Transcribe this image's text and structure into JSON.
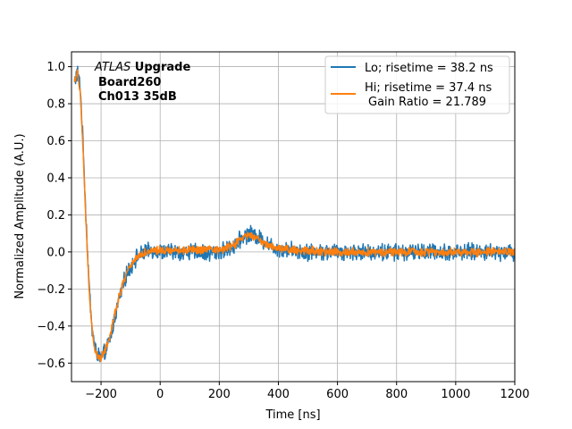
{
  "chart_data": {
    "type": "line",
    "xlabel": "Time [ns]",
    "ylabel": "Normalized Amplitude (A.U.)",
    "xlim": [
      -300,
      1200
    ],
    "ylim": [
      -0.7,
      1.08
    ],
    "xticks": [
      -200,
      0,
      200,
      400,
      600,
      800,
      1000,
      1200
    ],
    "yticks": [
      -0.6,
      -0.4,
      -0.2,
      0.0,
      0.2,
      0.4,
      0.6,
      0.8,
      1.0
    ],
    "xtick_labels": [
      "−200",
      "0",
      "200",
      "400",
      "600",
      "800",
      "1000",
      "1200"
    ],
    "ytick_labels": [
      "−0.6",
      "−0.4",
      "−0.2",
      "0.0",
      "0.2",
      "0.4",
      "0.6",
      "0.8",
      "1.0"
    ],
    "grid": true,
    "legend_position": "top-right",
    "annotation": {
      "line1_italic": "ATLAS",
      "line1_bold": " Upgrade",
      "line2": "Board260",
      "line3": "Ch013 35dB"
    },
    "legend_extra": "Gain Ratio = 21.789",
    "series": [
      {
        "name": "Lo; risetime = 38.2 ns",
        "color": "#1f77b4",
        "noise": 0.035,
        "x": [
          -290,
          -280,
          -270,
          -260,
          -250,
          -240,
          -230,
          -220,
          -210,
          -200,
          -190,
          -180,
          -170,
          -160,
          -150,
          -140,
          -130,
          -120,
          -110,
          -100,
          -90,
          -80,
          -70,
          -60,
          -50,
          -40,
          -30,
          -20,
          -10,
          0,
          20,
          40,
          60,
          80,
          100,
          120,
          140,
          160,
          180,
          200,
          220,
          240,
          260,
          280,
          300,
          320,
          340,
          360,
          380,
          400,
          450,
          500,
          550,
          600,
          650,
          700,
          750,
          800,
          850,
          900,
          950,
          1000,
          1050,
          1100,
          1150,
          1200
        ],
        "y": [
          0.92,
          0.97,
          0.88,
          0.55,
          0.15,
          -0.2,
          -0.42,
          -0.52,
          -0.56,
          -0.57,
          -0.55,
          -0.52,
          -0.47,
          -0.4,
          -0.33,
          -0.26,
          -0.2,
          -0.15,
          -0.11,
          -0.08,
          -0.05,
          -0.03,
          -0.02,
          -0.01,
          0.0,
          0.0,
          0.01,
          0.01,
          0.0,
          0.0,
          0.0,
          0.0,
          0.0,
          0.0,
          0.0,
          0.0,
          0.0,
          -0.01,
          0.0,
          0.0,
          0.01,
          0.02,
          0.05,
          0.08,
          0.1,
          0.09,
          0.07,
          0.05,
          0.03,
          0.02,
          0.01,
          0.0,
          0.0,
          0.0,
          0.0,
          0.0,
          0.0,
          0.0,
          0.0,
          0.0,
          0.0,
          0.0,
          0.0,
          0.0,
          0.0,
          0.0
        ]
      },
      {
        "name": "Hi; risetime = 37.4 ns",
        "color": "#ff7f0e",
        "noise": 0.018,
        "x": [
          -290,
          -280,
          -270,
          -260,
          -250,
          -240,
          -230,
          -220,
          -210,
          -200,
          -190,
          -180,
          -170,
          -160,
          -150,
          -140,
          -130,
          -120,
          -110,
          -100,
          -90,
          -80,
          -70,
          -60,
          -50,
          -40,
          -30,
          -20,
          -10,
          0,
          20,
          40,
          60,
          80,
          100,
          120,
          140,
          160,
          180,
          200,
          220,
          240,
          260,
          280,
          300,
          320,
          340,
          360,
          380,
          400,
          450,
          500,
          550,
          600,
          650,
          700,
          750,
          800,
          850,
          900,
          950,
          1000,
          1050,
          1100,
          1150,
          1200
        ],
        "y": [
          0.93,
          0.97,
          0.86,
          0.52,
          0.12,
          -0.22,
          -0.43,
          -0.53,
          -0.57,
          -0.57,
          -0.54,
          -0.5,
          -0.45,
          -0.38,
          -0.31,
          -0.25,
          -0.19,
          -0.14,
          -0.1,
          -0.07,
          -0.05,
          -0.03,
          -0.02,
          -0.01,
          0.0,
          0.0,
          0.01,
          0.01,
          0.01,
          0.01,
          0.01,
          0.01,
          0.01,
          0.01,
          0.01,
          0.01,
          0.01,
          0.01,
          0.01,
          0.01,
          0.02,
          0.03,
          0.05,
          0.08,
          0.09,
          0.08,
          0.06,
          0.04,
          0.03,
          0.02,
          0.01,
          0.01,
          0.0,
          0.0,
          0.0,
          0.0,
          0.0,
          0.0,
          0.0,
          0.0,
          0.0,
          0.0,
          0.0,
          0.0,
          0.0,
          0.0
        ]
      }
    ]
  }
}
